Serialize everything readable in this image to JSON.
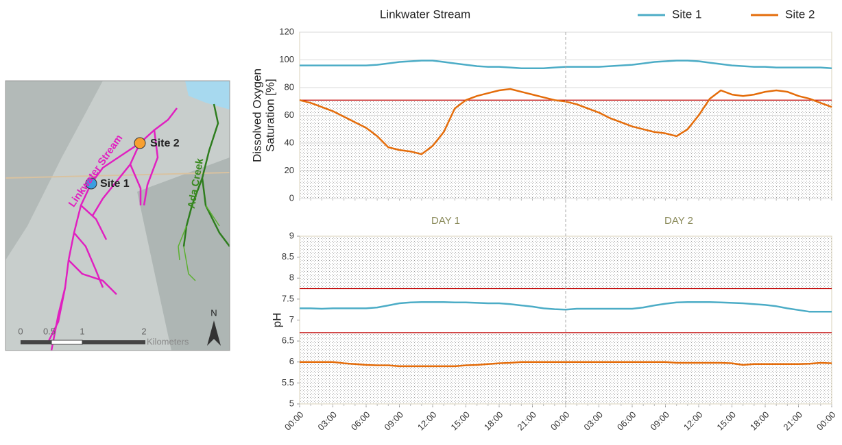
{
  "map": {
    "stream_label": "Linkwater Stream",
    "creek_label": "Ada Creek",
    "site1": "Site 1",
    "site2": "Site 2",
    "scale_labels": [
      "0",
      "0.5",
      "1",
      "2"
    ],
    "scale_unit": "Kilometers",
    "north": "N"
  },
  "chart_data": [
    {
      "type": "line",
      "title": "Linkwater Stream",
      "ylabel": [
        "Dissolved Oxygen",
        "Saturation [%]"
      ],
      "annotations": [
        "DAY 1",
        "DAY 2"
      ],
      "x": [
        0,
        1,
        2,
        3,
        4,
        5,
        6,
        7,
        8,
        9,
        10,
        11,
        12,
        13,
        14,
        15,
        16,
        17,
        18,
        19,
        20,
        21,
        22,
        23,
        24,
        25,
        26,
        27,
        28,
        29,
        30,
        31,
        32,
        33,
        34,
        35,
        36,
        37,
        38,
        39,
        40,
        41,
        42,
        43,
        44,
        45,
        46,
        47,
        48
      ],
      "xlim": [
        0,
        48
      ],
      "ylim": [
        0,
        120
      ],
      "yticks": [
        0,
        20,
        40,
        60,
        80,
        100,
        120
      ],
      "grid": true,
      "thresholds": [
        71
      ],
      "threshold_color": "#c00000",
      "series": [
        {
          "name": "Site 1",
          "color": "#4bacc6",
          "values": [
            96,
            96,
            96,
            96,
            96,
            96,
            96,
            96.5,
            97.5,
            98.5,
            99,
            99.5,
            99.5,
            98.5,
            97.5,
            96.5,
            95.5,
            95,
            95,
            94.5,
            94,
            94,
            94,
            94.5,
            95,
            95,
            95,
            95,
            95.5,
            96,
            96.5,
            97.5,
            98.5,
            99,
            99.5,
            99.5,
            99,
            98,
            97,
            96,
            95.5,
            95,
            95,
            94.5,
            94.5,
            94.5,
            94.5,
            94.5,
            94
          ]
        },
        {
          "name": "Site 2",
          "color": "#e46c0a",
          "values": [
            71,
            69,
            66,
            63,
            59,
            55,
            51,
            45,
            37,
            35,
            34,
            32,
            38,
            48,
            65,
            71,
            74,
            76,
            78,
            79,
            77,
            75,
            73,
            71,
            70,
            68,
            65,
            62,
            58,
            55,
            52,
            50,
            48,
            47,
            45,
            50,
            60,
            72,
            78,
            75,
            74,
            75,
            77,
            78,
            77,
            74,
            72,
            69,
            66
          ]
        }
      ]
    },
    {
      "type": "line",
      "ylabel": [
        "pH"
      ],
      "x": [
        0,
        1,
        2,
        3,
        4,
        5,
        6,
        7,
        8,
        9,
        10,
        11,
        12,
        13,
        14,
        15,
        16,
        17,
        18,
        19,
        20,
        21,
        22,
        23,
        24,
        25,
        26,
        27,
        28,
        29,
        30,
        31,
        32,
        33,
        34,
        35,
        36,
        37,
        38,
        39,
        40,
        41,
        42,
        43,
        44,
        45,
        46,
        47,
        48
      ],
      "xlim": [
        0,
        48
      ],
      "ylim": [
        5,
        9
      ],
      "yticks": [
        5,
        5.5,
        6,
        6.5,
        7,
        7.5,
        8,
        8.5,
        9
      ],
      "grid": false,
      "xticks": [
        {
          "value": 0,
          "label": "00:00"
        },
        {
          "value": 3,
          "label": "03:00"
        },
        {
          "value": 6,
          "label": "06:00"
        },
        {
          "value": 9,
          "label": "09:00"
        },
        {
          "value": 12,
          "label": "12:00"
        },
        {
          "value": 15,
          "label": "15:00"
        },
        {
          "value": 18,
          "label": "18:00"
        },
        {
          "value": 21,
          "label": "21:00"
        },
        {
          "value": 24,
          "label": "00:00"
        },
        {
          "value": 27,
          "label": "03:00"
        },
        {
          "value": 30,
          "label": "06:00"
        },
        {
          "value": 33,
          "label": "09:00"
        },
        {
          "value": 36,
          "label": "12:00"
        },
        {
          "value": 39,
          "label": "15:00"
        },
        {
          "value": 42,
          "label": "18:00"
        },
        {
          "value": 45,
          "label": "21:00"
        },
        {
          "value": 48,
          "label": "00:00"
        }
      ],
      "thresholds": [
        6.7,
        7.75
      ],
      "threshold_color": "#c00000",
      "series": [
        {
          "name": "Site 1",
          "color": "#4bacc6",
          "values": [
            7.28,
            7.28,
            7.27,
            7.28,
            7.28,
            7.28,
            7.28,
            7.3,
            7.35,
            7.4,
            7.42,
            7.43,
            7.43,
            7.43,
            7.42,
            7.42,
            7.41,
            7.4,
            7.4,
            7.38,
            7.35,
            7.32,
            7.28,
            7.26,
            7.25,
            7.27,
            7.27,
            7.27,
            7.27,
            7.27,
            7.27,
            7.3,
            7.35,
            7.39,
            7.42,
            7.43,
            7.43,
            7.43,
            7.42,
            7.41,
            7.4,
            7.38,
            7.36,
            7.33,
            7.28,
            7.24,
            7.2,
            7.2,
            7.2
          ]
        },
        {
          "name": "Site 2",
          "color": "#e46c0a",
          "values": [
            6.0,
            6.0,
            6.0,
            6.0,
            5.97,
            5.95,
            5.93,
            5.92,
            5.92,
            5.9,
            5.9,
            5.9,
            5.9,
            5.9,
            5.9,
            5.92,
            5.93,
            5.95,
            5.97,
            5.98,
            6.0,
            6.0,
            6.0,
            6.0,
            6.0,
            6.0,
            6.0,
            6.0,
            6.0,
            6.0,
            6.0,
            6.0,
            6.0,
            6.0,
            5.98,
            5.98,
            5.98,
            5.98,
            5.98,
            5.97,
            5.93,
            5.95,
            5.95,
            5.95,
            5.95,
            5.95,
            5.96,
            5.98,
            5.97
          ]
        }
      ]
    }
  ]
}
